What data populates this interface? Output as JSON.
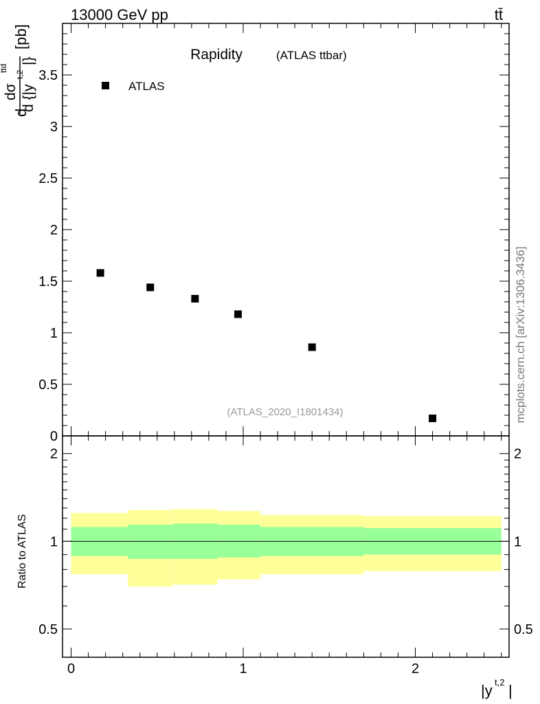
{
  "header": {
    "energy_label": "13000 GeV pp",
    "process_label": "tt̄"
  },
  "side_label": "mcplots.cern.ch [arXiv:1306.3436]",
  "chart_data": [
    {
      "type": "scatter",
      "title": "Rapidity",
      "subtitle": "(ATLAS ttbar)",
      "analysis_id": "(ATLAS_2020_I1801434)",
      "ylabel": {
        "frac_num": "dσ",
        "frac_num_sup": "ttd",
        "frac_den": "d {|y",
        "frac_den_sup": "t,2",
        "frac_den_close": "|}",
        "prefix": "d",
        "suffix": "[pb]"
      },
      "xlim": [
        -0.05,
        2.55
      ],
      "ylim": [
        0,
        4
      ],
      "y_ticks": [
        {
          "value": 0,
          "label": "0"
        },
        {
          "value": 0.5,
          "label": "0.5"
        },
        {
          "value": 1,
          "label": "1"
        },
        {
          "value": 1.5,
          "label": "1.5"
        },
        {
          "value": 2,
          "label": "2"
        },
        {
          "value": 2.5,
          "label": "2.5"
        },
        {
          "value": 3,
          "label": "3"
        },
        {
          "value": 3.5,
          "label": "3.5"
        }
      ],
      "legend": {
        "entries": [
          "ATLAS"
        ],
        "placement": "top-left"
      },
      "series": [
        {
          "name": "ATLAS",
          "marker": "square",
          "x": [
            0.17,
            0.46,
            0.72,
            0.97,
            1.4,
            2.1
          ],
          "y": [
            1.58,
            1.44,
            1.33,
            1.18,
            0.86,
            0.17
          ]
        }
      ]
    },
    {
      "type": "ratio-band",
      "ylabel": "Ratio to ATLAS",
      "xlabel": "|y",
      "xlabel_sup": "t,2",
      "xlabel_close": "|",
      "ylim": [
        0.4,
        2.3
      ],
      "y_ticks": [
        {
          "value": 0.5,
          "label": "0.5"
        },
        {
          "value": 1,
          "label": "1"
        },
        {
          "value": 2,
          "label": "2"
        }
      ],
      "x_ticks": [
        {
          "value": 0,
          "label": "0"
        },
        {
          "value": 1,
          "label": "1"
        },
        {
          "value": 2,
          "label": "2"
        }
      ],
      "reference_line": 1,
      "bins": [
        {
          "lo": 0.0,
          "hi": 0.33,
          "inner": [
            0.89,
            1.12
          ],
          "outer": [
            0.77,
            1.25
          ]
        },
        {
          "lo": 0.33,
          "hi": 0.59,
          "inner": [
            0.87,
            1.14
          ],
          "outer": [
            0.7,
            1.28
          ]
        },
        {
          "lo": 0.59,
          "hi": 0.85,
          "inner": [
            0.87,
            1.15
          ],
          "outer": [
            0.71,
            1.29
          ]
        },
        {
          "lo": 0.85,
          "hi": 1.1,
          "inner": [
            0.88,
            1.14
          ],
          "outer": [
            0.74,
            1.27
          ]
        },
        {
          "lo": 1.1,
          "hi": 1.7,
          "inner": [
            0.89,
            1.12
          ],
          "outer": [
            0.77,
            1.23
          ]
        },
        {
          "lo": 1.7,
          "hi": 2.5,
          "inner": [
            0.9,
            1.11
          ],
          "outer": [
            0.79,
            1.22
          ]
        }
      ],
      "colors": {
        "inner": "#99ff99",
        "outer": "#ffff99",
        "line": "#000000"
      }
    }
  ]
}
